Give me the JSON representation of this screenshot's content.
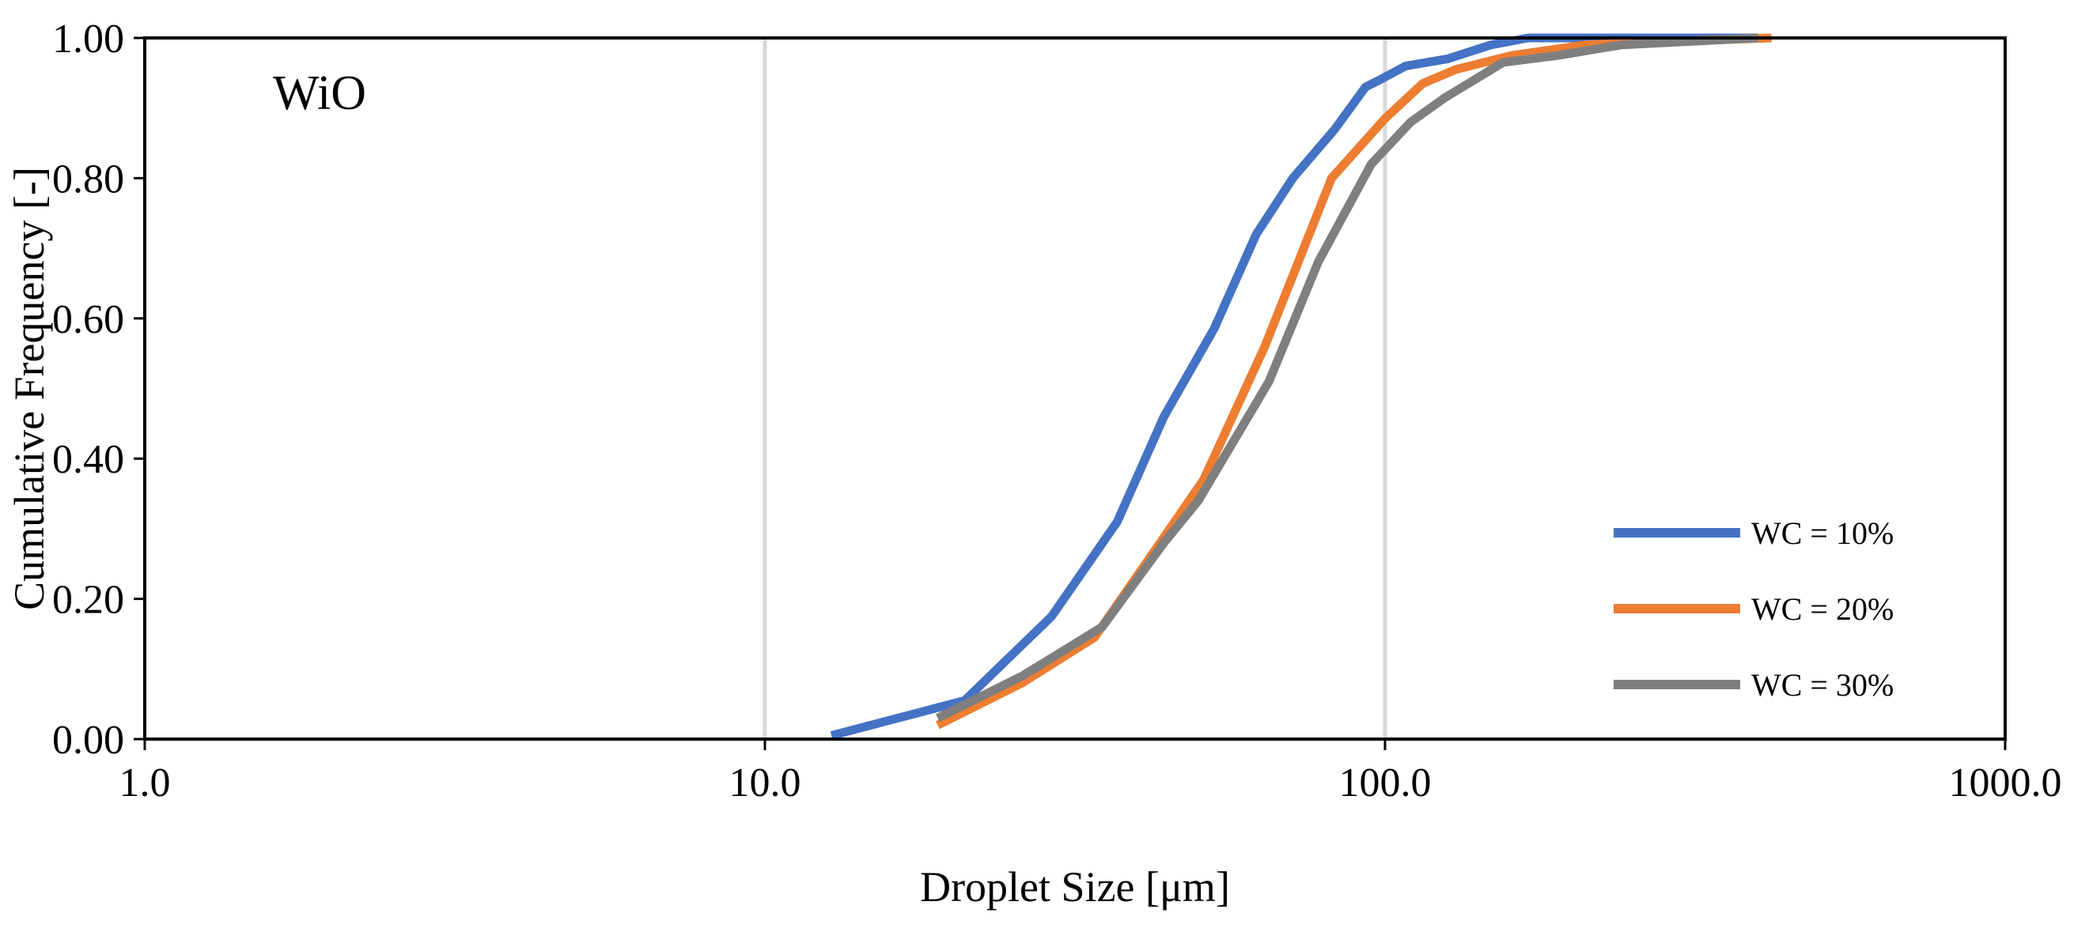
{
  "chart_data": {
    "type": "line",
    "title": "",
    "annotation": "WiO",
    "xlabel": "Droplet Size [μm]",
    "ylabel": "Cumulative Frequency [-]",
    "xscale": "log",
    "xlim": [
      1,
      1000
    ],
    "ylim": [
      0,
      1
    ],
    "x_ticks": [
      1,
      10,
      100,
      1000
    ],
    "x_tick_labels": [
      "1.0",
      "10.0",
      "100.0",
      "1000.0"
    ],
    "y_ticks": [
      0,
      0.2,
      0.4,
      0.6,
      0.8,
      1.0
    ],
    "y_tick_labels": [
      "0.00",
      "0.20",
      "0.40",
      "0.60",
      "0.80",
      "1.00"
    ],
    "grid": "vertical major gridlines",
    "legend_position": "right",
    "series": [
      {
        "name": "WC = 10%",
        "color": "#4472C4",
        "x": [
          12.8,
          21,
          29,
          37,
          44,
          53,
          62,
          71,
          83,
          93,
          98,
          108,
          126,
          148,
          170,
          230,
          400
        ],
        "y": [
          0.005,
          0.055,
          0.175,
          0.31,
          0.46,
          0.585,
          0.72,
          0.8,
          0.87,
          0.93,
          0.94,
          0.96,
          0.97,
          0.99,
          1.0,
          1.0,
          1.0
        ]
      },
      {
        "name": "WC = 20%",
        "color": "#ED7D31",
        "x": [
          19,
          26,
          34,
          43,
          51,
          64,
          82,
          100,
          115,
          130,
          160,
          210,
          290,
          420
        ],
        "y": [
          0.02,
          0.08,
          0.145,
          0.275,
          0.37,
          0.56,
          0.8,
          0.885,
          0.935,
          0.955,
          0.975,
          0.99,
          0.995,
          1.0
        ]
      },
      {
        "name": "WC = 30%",
        "color": "#7F7F7F",
        "x": [
          19,
          26,
          35,
          44,
          50,
          65,
          78,
          95,
          110,
          125,
          155,
          190,
          240,
          310,
          400
        ],
        "y": [
          0.03,
          0.09,
          0.16,
          0.28,
          0.34,
          0.51,
          0.68,
          0.82,
          0.88,
          0.915,
          0.965,
          0.975,
          0.99,
          0.995,
          1.0
        ]
      }
    ]
  }
}
